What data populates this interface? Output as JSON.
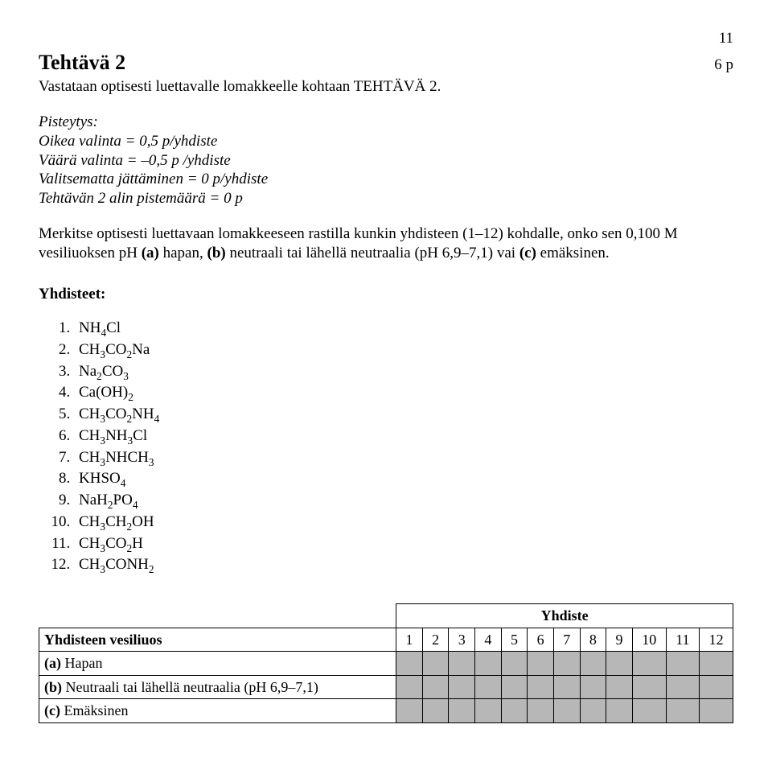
{
  "page_number": "11",
  "title": "Tehtävä 2",
  "points": "6 p",
  "subtitle": "Vastataan optisesti luettavalle lomakkeelle kohtaan TEHTÄVÄ 2.",
  "scoring": {
    "heading": "Pisteytys:",
    "line1": "Oikea valinta = 0,5 p/yhdiste",
    "line2": "Väärä valinta = –0,5 p /yhdiste",
    "line3": "Valitsematta jättäminen = 0 p/yhdiste",
    "line4": "Tehtävän 2 alin pistemäärä = 0 p"
  },
  "instruction_pre": "Merkitse optisesti luettavaan lomakkeeseen rastilla kunkin yhdisteen (1–12) kohdalle, onko sen 0,100 M vesiliuoksen pH ",
  "instruction_a": "(a)",
  "instruction_a_txt": " hapan, ",
  "instruction_b": "(b)",
  "instruction_b_txt": " neutraali tai lähellä neutraalia (pH 6,9–7,1) vai ",
  "instruction_c": "(c)",
  "instruction_c_txt": " emäksinen.",
  "compounds_heading": "Yhdisteet:",
  "compounds": [
    "NH4Cl",
    "CH3CO2Na",
    "Na2CO3",
    "Ca(OH)2",
    "CH3CO2NH4",
    "CH3NH3Cl",
    "CH3NHCH3",
    "KHSO4",
    "NaH2PO4",
    "CH3CH2OH",
    "CH3CO2H",
    "CH3CONH2"
  ],
  "table": {
    "group_header": "Yhdiste",
    "row_header_label": "Yhdisteen vesiliuos",
    "cols": [
      "1",
      "2",
      "3",
      "4",
      "5",
      "6",
      "7",
      "8",
      "9",
      "10",
      "11",
      "12"
    ],
    "rows": [
      {
        "label_bold": "(a)",
        "label_rest": " Hapan"
      },
      {
        "label_bold": "(b)",
        "label_rest": " Neutraali tai lähellä neutraalia (pH 6,9–7,1)"
      },
      {
        "label_bold": "(c)",
        "label_rest": " Emäksinen"
      }
    ]
  }
}
